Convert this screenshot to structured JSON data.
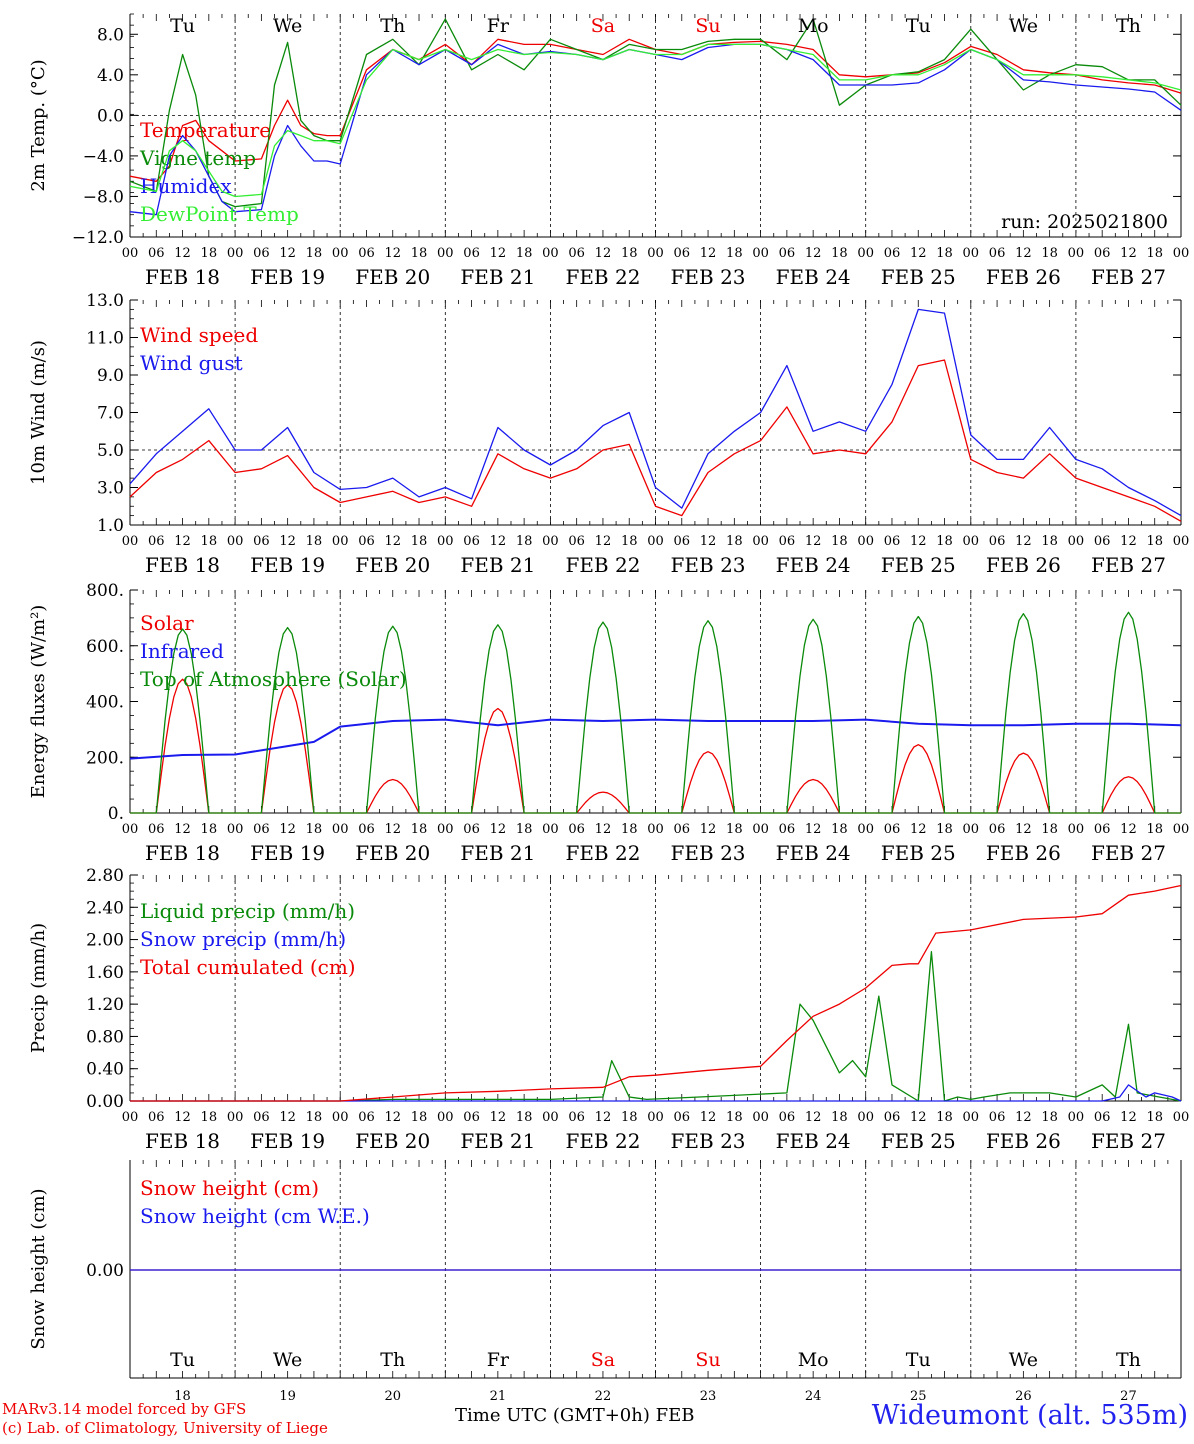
{
  "run_label": "run: 2025021800",
  "dates": [
    "FEB 18",
    "FEB 19",
    "FEB 20",
    "FEB 21",
    "FEB 22",
    "FEB 23",
    "FEB 24",
    "FEB 25",
    "FEB 26",
    "FEB 27"
  ],
  "days": [
    "Tu",
    "We",
    "Th",
    "Fr",
    "Sa",
    "Su",
    "Mo",
    "Tu",
    "We",
    "Th"
  ],
  "weekend_days": [
    4,
    5
  ],
  "day_numbers": [
    "18",
    "19",
    "20",
    "21",
    "22",
    "23",
    "24",
    "25",
    "26",
    "27"
  ],
  "hour_ticks": [
    "00",
    "06",
    "12",
    "18"
  ],
  "hour_end": "00",
  "colors": {
    "red": "#ee0000",
    "green": "#0a8a0a",
    "blue": "#1a1aee",
    "lightgreen": "#33ee33",
    "weekend": "#ee0000"
  },
  "footer": {
    "credit_line1": "MARv3.14 model forced by GFS",
    "credit_line2": "(c) Lab. of Climatology, University of Liege",
    "x_title": "Time UTC (GMT+0h) FEB",
    "station": "Wideumont (alt. 535m)"
  },
  "chart_data": [
    {
      "type": "line",
      "id": "temp",
      "ylabel": "2m Temp. (°C)",
      "ylim": [
        -12,
        10
      ],
      "yticks": [
        8,
        4,
        0,
        -4,
        -8,
        -12
      ],
      "ytick_labels": [
        "8.0",
        "4.0",
        "0.0",
        "−4.0",
        "−8.0",
        "−12.0"
      ],
      "ref_line": 0,
      "x_hours": [
        0,
        6,
        9,
        12,
        15,
        18,
        21,
        24,
        30,
        33,
        36,
        39,
        42,
        45,
        48,
        54,
        60,
        66,
        72,
        78,
        84,
        90,
        96,
        102,
        108,
        114,
        120,
        126,
        132,
        138,
        144,
        150,
        156,
        162,
        168,
        174,
        180,
        186,
        192,
        198,
        204,
        210,
        216,
        222,
        228,
        234,
        240
      ],
      "series": [
        {
          "name": "Temperature",
          "color": "red",
          "values": [
            -6,
            -6.5,
            -5,
            -1,
            -0.5,
            -2.5,
            -3.5,
            -4.5,
            -4.3,
            -1,
            1.5,
            -1,
            -1.8,
            -2,
            -2,
            4.5,
            6.5,
            5.5,
            7,
            5,
            7.5,
            7,
            7,
            6.5,
            6,
            7.5,
            6.5,
            6,
            7,
            7.2,
            7.3,
            7,
            6.5,
            4,
            3.8,
            4,
            4.2,
            5.2,
            6.8,
            6,
            4.5,
            4.2,
            4,
            3.5,
            3.2,
            3,
            2.2
          ]
        },
        {
          "name": "Vigne temp",
          "color": "green",
          "values": [
            -6.5,
            -7.5,
            0.5,
            6,
            2,
            -6,
            -8.5,
            -9,
            -8.7,
            3,
            7.2,
            -0.5,
            -2,
            -2.5,
            -2.5,
            6,
            7.5,
            5,
            9.5,
            4.5,
            6,
            4.5,
            7.5,
            6.5,
            5.5,
            7,
            6.5,
            6.5,
            7.3,
            7.5,
            7.5,
            5.5,
            9.5,
            1,
            3,
            4,
            4.3,
            5.5,
            8.5,
            5.5,
            2.5,
            4,
            5,
            4.8,
            3.5,
            3.5,
            1
          ]
        },
        {
          "name": "Humidex",
          "color": "blue",
          "values": [
            -9.5,
            -9.8,
            -4,
            -2,
            -3.5,
            -6,
            -8.5,
            -9.5,
            -9.3,
            -4,
            -1,
            -3,
            -4.5,
            -4.5,
            -4.8,
            4,
            6.5,
            5,
            6.5,
            5,
            7,
            6,
            6.3,
            6,
            5.5,
            6.5,
            6,
            5.5,
            6.7,
            7,
            7,
            6.5,
            5.5,
            3,
            3,
            3,
            3.2,
            4.5,
            6.5,
            5.5,
            3.5,
            3.3,
            3,
            2.8,
            2.6,
            2.3,
            0.5
          ]
        },
        {
          "name": "DewPoint Temp",
          "color": "lightgreen",
          "values": [
            -7,
            -7.5,
            -3.5,
            -2.5,
            -3.5,
            -5.5,
            -7.5,
            -8,
            -7.8,
            -3,
            -1.5,
            -2,
            -2.5,
            -2.5,
            -2.8,
            3.5,
            6.5,
            5.5,
            6.5,
            5.5,
            6.5,
            6,
            6.2,
            6,
            5.5,
            6.5,
            6,
            6,
            7,
            7,
            7,
            6.5,
            6,
            3.5,
            3.5,
            4,
            4,
            5,
            6.5,
            5.5,
            4,
            4,
            4,
            3.8,
            3.5,
            3.2,
            2.5
          ]
        }
      ]
    },
    {
      "type": "line",
      "id": "wind",
      "ylabel": "10m Wind  (m/s)",
      "ylim": [
        1,
        13
      ],
      "yticks": [
        13,
        11,
        9,
        7,
        5,
        3,
        1
      ],
      "ytick_labels": [
        "13.0",
        "11.0",
        "9.0",
        "7.0",
        "5.0",
        "3.0",
        "1.0"
      ],
      "ref_line": 5,
      "x_hours": [
        0,
        6,
        12,
        18,
        24,
        30,
        36,
        42,
        48,
        54,
        60,
        66,
        72,
        78,
        84,
        90,
        96,
        102,
        108,
        114,
        120,
        126,
        132,
        138,
        144,
        150,
        156,
        162,
        168,
        174,
        180,
        186,
        192,
        198,
        204,
        210,
        216,
        222,
        228,
        234,
        240
      ],
      "series": [
        {
          "name": "Wind speed",
          "color": "red",
          "values": [
            2.5,
            3.8,
            4.5,
            5.5,
            3.8,
            4,
            4.7,
            3,
            2.2,
            2.5,
            2.8,
            2.2,
            2.5,
            2,
            4.8,
            4,
            3.5,
            4,
            5,
            5.3,
            2,
            1.5,
            3.8,
            4.8,
            5.5,
            7.3,
            4.8,
            5,
            4.8,
            6.5,
            9.5,
            9.8,
            4.5,
            3.8,
            3.5,
            4.8,
            3.5,
            3,
            2.5,
            2,
            1.2
          ]
        },
        {
          "name": "Wind gust",
          "color": "blue",
          "values": [
            3.2,
            4.8,
            6,
            7.2,
            5,
            5,
            6.2,
            3.8,
            2.9,
            3,
            3.5,
            2.5,
            3,
            2.4,
            6.2,
            5,
            4.2,
            5,
            6.3,
            7,
            3,
            1.9,
            4.8,
            6,
            7,
            9.5,
            6,
            6.5,
            6,
            8.5,
            12.5,
            12.3,
            5.8,
            4.5,
            4.5,
            6.2,
            4.5,
            4,
            3,
            2.3,
            1.5
          ]
        }
      ]
    },
    {
      "type": "line",
      "id": "energy",
      "ylabel": "Energy fluxes (W/m²)",
      "ylim": [
        0,
        800
      ],
      "yticks": [
        800,
        600,
        400,
        200,
        0
      ],
      "ytick_labels": [
        "800.",
        "600.",
        "400.",
        "200.",
        "0."
      ],
      "series": [
        {
          "name": "Solar",
          "color": "red",
          "peaks": [
            480,
            460,
            120,
            375,
            75,
            220,
            120,
            245,
            215,
            130
          ]
        },
        {
          "name": "Infrared",
          "color": "blue",
          "x_hours": [
            0,
            12,
            24,
            36,
            42,
            48,
            60,
            72,
            84,
            96,
            108,
            120,
            132,
            144,
            156,
            168,
            180,
            192,
            204,
            216,
            228,
            240
          ],
          "values": [
            195,
            208,
            210,
            240,
            255,
            310,
            330,
            335,
            315,
            335,
            330,
            335,
            330,
            330,
            330,
            335,
            320,
            315,
            315,
            320,
            320,
            315
          ]
        },
        {
          "name": "Top of Atmosphere (Solar)",
          "color": "green",
          "peaks": [
            660,
            665,
            670,
            675,
            685,
            690,
            695,
            705,
            715,
            720
          ]
        }
      ]
    },
    {
      "type": "line",
      "id": "precip",
      "ylabel": "Precip  (mm/h)",
      "ylim": [
        0,
        2.8
      ],
      "yticks": [
        2.8,
        2.4,
        2.0,
        1.6,
        1.2,
        0.8,
        0.4,
        0.0
      ],
      "ytick_labels": [
        "2.80",
        "2.40",
        "2.00",
        "1.60",
        "1.20",
        "0.80",
        "0.40",
        "0.00"
      ],
      "series": [
        {
          "name": "Liquid precip (mm/h)",
          "color": "green",
          "x_hours": [
            0,
            48,
            60,
            72,
            96,
            108,
            110,
            114,
            118,
            130,
            150,
            153,
            156,
            162,
            165,
            168,
            171,
            174,
            180,
            183,
            186,
            189,
            192,
            195,
            201,
            210,
            216,
            222,
            225,
            228,
            230,
            235,
            240
          ],
          "values": [
            0,
            0,
            0.02,
            0.02,
            0.02,
            0.05,
            0.5,
            0.05,
            0.02,
            0.05,
            0.1,
            1.2,
            1.0,
            0.35,
            0.5,
            0.3,
            1.3,
            0.2,
            0,
            1.85,
            0,
            0.05,
            0.02,
            0.05,
            0.1,
            0.1,
            0.05,
            0.2,
            0.05,
            0.95,
            0.1,
            0.05,
            0
          ]
        },
        {
          "name": "Snow precip (mm/h)",
          "color": "blue",
          "x_hours": [
            0,
            222,
            226,
            228,
            232,
            234,
            238,
            240
          ],
          "values": [
            0,
            0,
            0.05,
            0.2,
            0.05,
            0.1,
            0.05,
            0
          ]
        },
        {
          "name": "Total cumulated (cm)",
          "color": "red",
          "x_hours": [
            0,
            48,
            60,
            72,
            84,
            96,
            108,
            114,
            120,
            132,
            144,
            150,
            156,
            162,
            168,
            174,
            178,
            180,
            184,
            192,
            204,
            216,
            222,
            228,
            234,
            240
          ],
          "values": [
            0,
            0,
            0.05,
            0.1,
            0.12,
            0.15,
            0.17,
            0.3,
            0.32,
            0.38,
            0.43,
            0.75,
            1.05,
            1.2,
            1.4,
            1.68,
            1.7,
            1.7,
            2.08,
            2.12,
            2.25,
            2.28,
            2.32,
            2.55,
            2.6,
            2.67
          ]
        }
      ]
    },
    {
      "type": "line",
      "id": "snow",
      "ylabel": "Snow height (cm)",
      "yticks": [
        0
      ],
      "ytick_labels": [
        "0.00"
      ],
      "series": [
        {
          "name": "Snow height (cm)",
          "color": "red",
          "values": [
            0,
            0
          ]
        },
        {
          "name": "Snow height (cm W.E.)",
          "color": "blue",
          "values": []
        }
      ]
    }
  ]
}
